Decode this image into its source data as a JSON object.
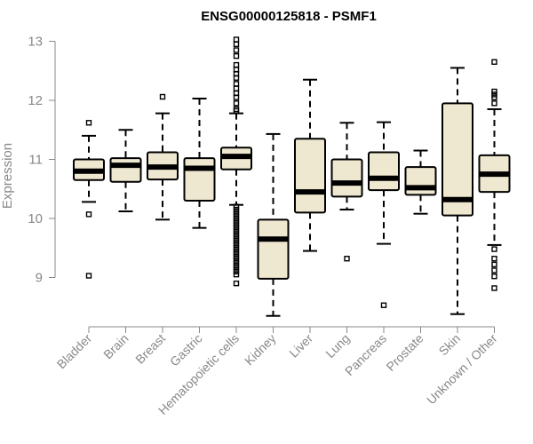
{
  "chart_data": {
    "type": "boxplot",
    "title": "ENSG00000125818 - PSMF1",
    "xlabel": "",
    "ylabel": "Expression",
    "ylim": [
      8.3,
      13.1
    ],
    "yticks": [
      9,
      10,
      11,
      12,
      13
    ],
    "box_fill": "#efe8d0",
    "categories": [
      "Bladder",
      "Brain",
      "Breast",
      "Gastric",
      "Hematopoietic cells",
      "Kidney",
      "Liver",
      "Lung",
      "Pancreas",
      "Prostate",
      "Skin",
      "Unknown / Other"
    ],
    "boxes": [
      {
        "min": 10.28,
        "q1": 10.65,
        "median": 10.8,
        "q3": 11.0,
        "max": 11.4,
        "outliers": [
          11.62,
          10.07,
          9.03
        ]
      },
      {
        "min": 10.12,
        "q1": 10.62,
        "median": 10.9,
        "q3": 11.02,
        "max": 11.5,
        "outliers": []
      },
      {
        "min": 9.98,
        "q1": 10.66,
        "median": 10.87,
        "q3": 11.12,
        "max": 11.78,
        "outliers": [
          12.06
        ]
      },
      {
        "min": 9.84,
        "q1": 10.3,
        "median": 10.85,
        "q3": 11.02,
        "max": 12.03,
        "outliers": []
      },
      {
        "min": 10.23,
        "q1": 10.83,
        "median": 11.05,
        "q3": 11.2,
        "max": 11.78,
        "outliers": [
          13.03,
          12.95,
          12.85,
          12.75,
          12.6,
          12.52,
          12.45,
          12.38,
          12.28,
          12.2,
          12.12,
          12.05,
          11.95,
          11.85,
          11.82,
          10.2,
          10.15,
          10.1,
          10.05,
          10.0,
          9.95,
          9.9,
          9.85,
          9.8,
          9.75,
          9.7,
          9.65,
          9.6,
          9.55,
          9.5,
          9.45,
          9.4,
          9.35,
          9.3,
          9.25,
          9.2,
          9.15,
          9.1,
          9.05,
          8.9
        ]
      },
      {
        "min": 8.35,
        "q1": 8.98,
        "median": 9.65,
        "q3": 9.98,
        "max": 11.43,
        "outliers": []
      },
      {
        "min": 9.45,
        "q1": 10.1,
        "median": 10.45,
        "q3": 11.35,
        "max": 12.35,
        "outliers": []
      },
      {
        "min": 10.15,
        "q1": 10.37,
        "median": 10.6,
        "q3": 11.0,
        "max": 11.62,
        "outliers": [
          9.32
        ]
      },
      {
        "min": 9.57,
        "q1": 10.48,
        "median": 10.68,
        "q3": 11.12,
        "max": 11.63,
        "outliers": [
          8.53
        ]
      },
      {
        "min": 10.08,
        "q1": 10.4,
        "median": 10.52,
        "q3": 10.87,
        "max": 11.15,
        "outliers": []
      },
      {
        "min": 8.38,
        "q1": 10.05,
        "median": 10.32,
        "q3": 11.95,
        "max": 12.55,
        "outliers": []
      },
      {
        "min": 9.55,
        "q1": 10.45,
        "median": 10.75,
        "q3": 11.07,
        "max": 11.85,
        "outliers": [
          12.65,
          12.15,
          12.1,
          12.05,
          11.95,
          9.48,
          9.32,
          9.22,
          9.12,
          9.02,
          8.82
        ]
      }
    ]
  }
}
